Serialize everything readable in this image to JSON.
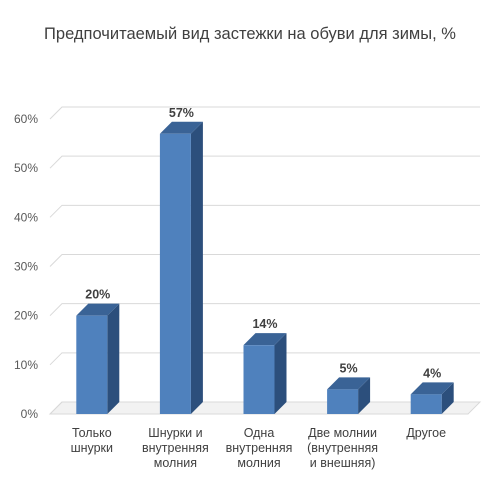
{
  "chart_data": {
    "type": "bar",
    "title": "Предпочитаемый вид застежки на обуви для зимы, %",
    "categories": [
      [
        "Только",
        "шнурки"
      ],
      [
        "Шнурки и",
        "внутренняя",
        "молния"
      ],
      [
        "Одна",
        "внутренняя",
        "молния"
      ],
      [
        "Две молнии",
        "(внутренняя",
        "и внешняя)"
      ],
      [
        "Другое"
      ]
    ],
    "values": [
      20,
      57,
      14,
      5,
      4
    ],
    "data_labels": [
      "20%",
      "57%",
      "14%",
      "5%",
      "4%"
    ],
    "y_ticks": [
      "0%",
      "10%",
      "20%",
      "30%",
      "40%",
      "50%",
      "60%"
    ],
    "ylim": [
      0,
      60
    ],
    "grid": true,
    "style": "3d-column",
    "colors": {
      "bar_front": "#4f81bd",
      "bar_side": "#2c4f7c",
      "bar_top": "#3a6396",
      "grid": "#d9d9d9"
    }
  }
}
